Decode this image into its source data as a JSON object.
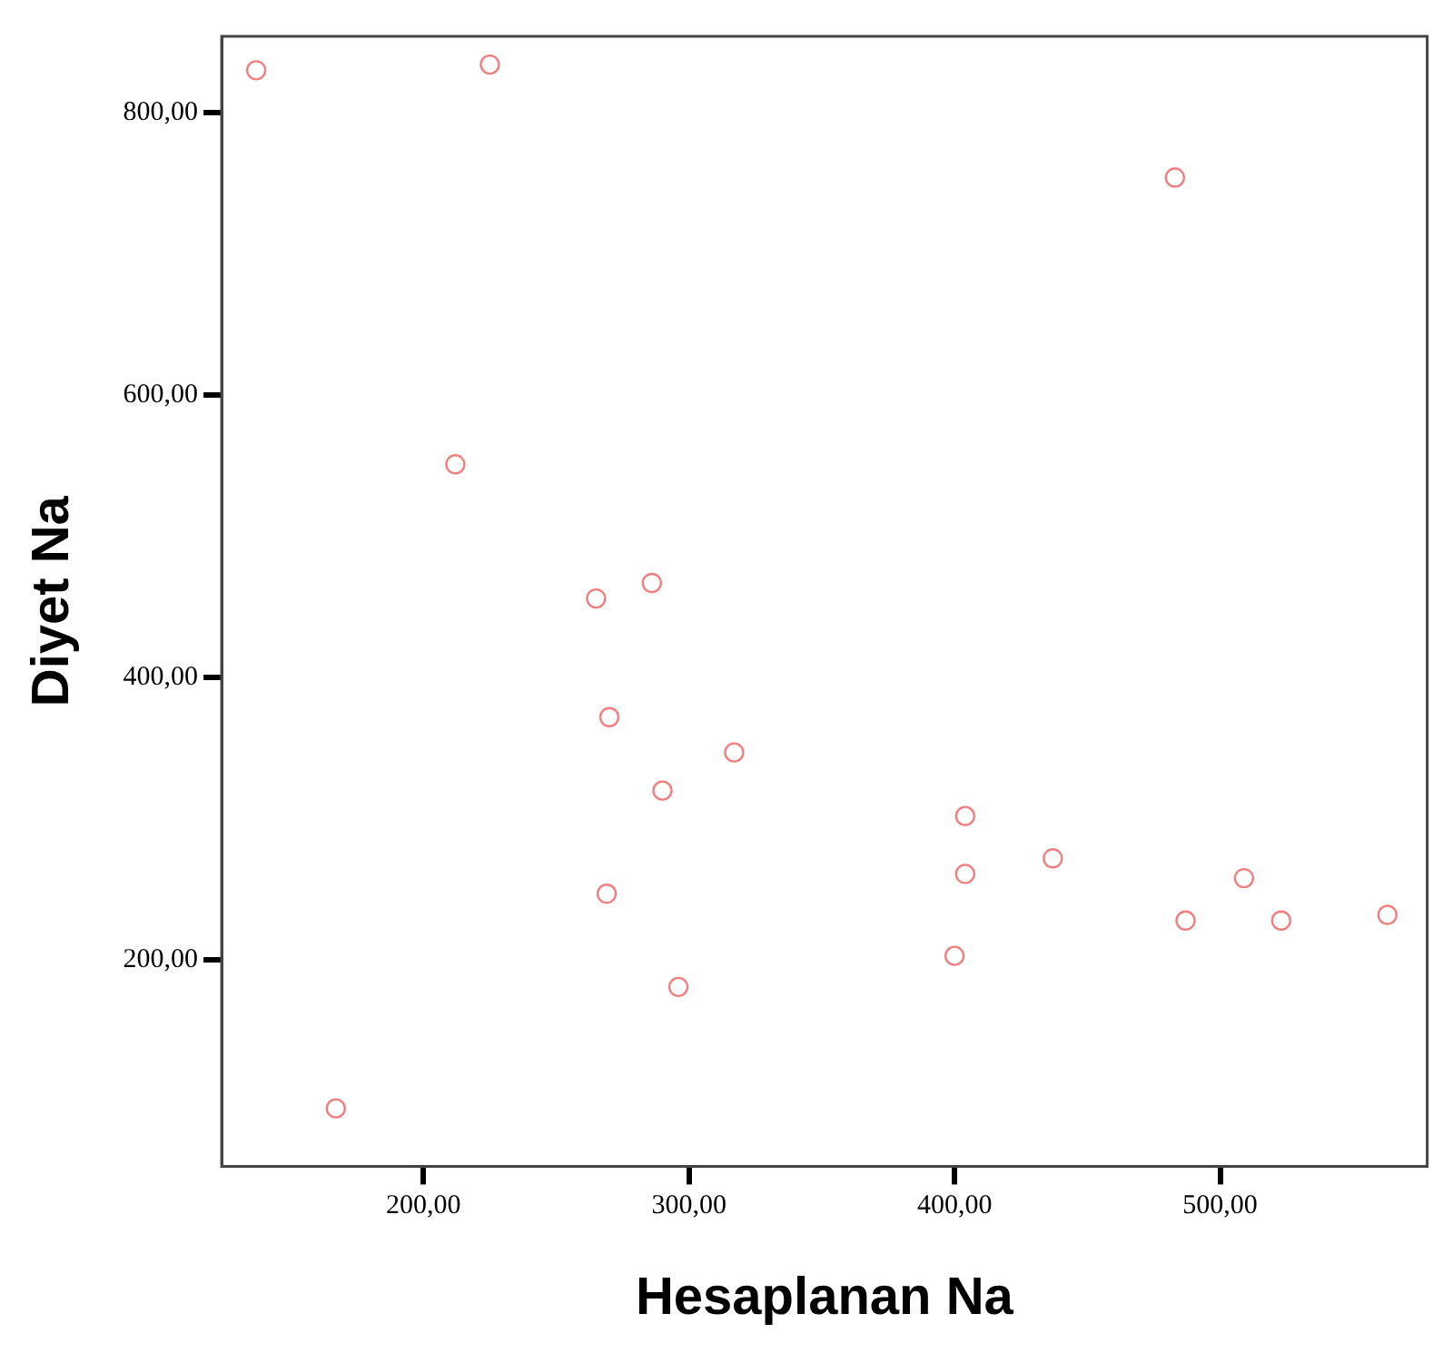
{
  "chart_data": {
    "type": "scatter",
    "xlabel": "Hesaplanan Na",
    "ylabel": "Diyet Na",
    "xlim": [
      124,
      578
    ],
    "ylim": [
      54,
      854
    ],
    "xticks": [
      {
        "value": 200,
        "label": "200,00"
      },
      {
        "value": 300,
        "label": "300,00"
      },
      {
        "value": 400,
        "label": "400,00"
      },
      {
        "value": 500,
        "label": "500,00"
      }
    ],
    "yticks": [
      {
        "value": 200,
        "label": "200,00"
      },
      {
        "value": 400,
        "label": "400,00"
      },
      {
        "value": 600,
        "label": "600,00"
      },
      {
        "value": 800,
        "label": "800,00"
      }
    ],
    "grid": false,
    "legend": false,
    "marker": "circle",
    "series": [
      {
        "color": "#f08080",
        "x": [
          137,
          225,
          483,
          212,
          265,
          286,
          270,
          317,
          290,
          404,
          404,
          437,
          269,
          296,
          400,
          487,
          509,
          523,
          563,
          167
        ],
        "values": [
          830,
          834,
          754,
          551,
          456,
          467,
          372,
          347,
          320,
          302,
          261,
          272,
          247,
          181,
          203,
          228,
          258,
          228,
          232,
          95
        ]
      }
    ]
  }
}
